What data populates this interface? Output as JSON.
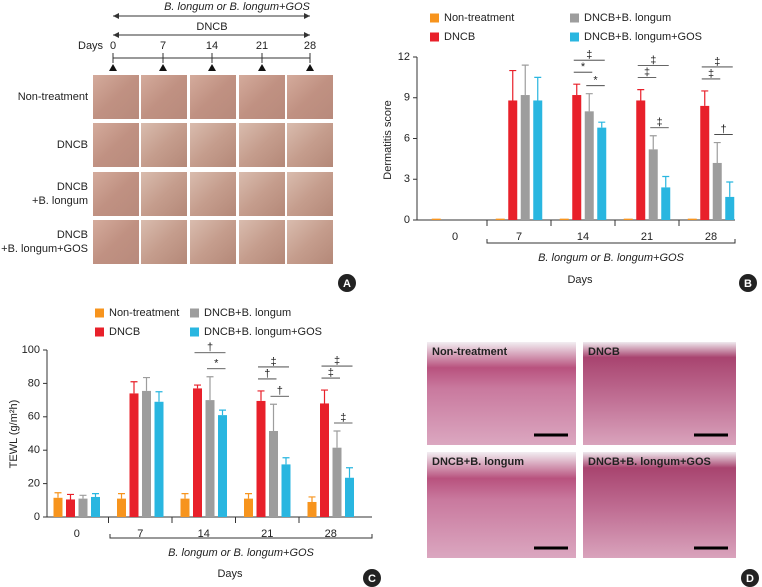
{
  "chart_data": [
    {
      "type": "bar",
      "y_label": "Dermatitis score",
      "x_label": "Days",
      "bracket_label": "B. longum or B. longum+GOS",
      "categories": [
        "0",
        "7",
        "14",
        "21",
        "28"
      ],
      "series": [
        {
          "name": "Non-treatment",
          "color": "#f7941d",
          "values": [
            0.1,
            0.1,
            0.1,
            0.1,
            0.1
          ],
          "errors": [
            null,
            null,
            null,
            null,
            null
          ]
        },
        {
          "name": "DNCB",
          "color": "#e8202a",
          "values": [
            null,
            8.8,
            9.2,
            8.8,
            8.4
          ],
          "errors": [
            null,
            2.2,
            0.8,
            0.8,
            1.1
          ]
        },
        {
          "name": "DNCB+B. longum",
          "color": "#9d9d9d",
          "values": [
            null,
            9.2,
            8.0,
            5.2,
            4.2
          ],
          "errors": [
            null,
            2.2,
            1.3,
            1.0,
            1.5
          ]
        },
        {
          "name": "DNCB+B. longum+GOS",
          "color": "#29b6e0",
          "values": [
            null,
            8.8,
            6.8,
            2.4,
            1.7
          ],
          "errors": [
            null,
            1.7,
            0.4,
            0.8,
            1.1
          ]
        }
      ],
      "ylim": [
        0,
        12
      ],
      "yticks": [
        0,
        3,
        6,
        9,
        12
      ],
      "annotations": [
        "‡",
        "*",
        "*",
        "‡",
        "‡",
        "‡",
        "‡",
        "‡",
        "†"
      ]
    },
    {
      "type": "bar",
      "y_label": "TEWL (g/m²h)",
      "x_label": "Days",
      "bracket_label": "B. longum or B. longum+GOS",
      "categories": [
        "0",
        "7",
        "14",
        "21",
        "28"
      ],
      "series": [
        {
          "name": "Non-treatment",
          "color": "#f7941d",
          "values": [
            11.5,
            11,
            11,
            11,
            9
          ],
          "errors": [
            3,
            3,
            3,
            3,
            3
          ]
        },
        {
          "name": "DNCB",
          "color": "#e8202a",
          "values": [
            10.5,
            74,
            77,
            69.5,
            68
          ],
          "errors": [
            3,
            7,
            2,
            6,
            8
          ]
        },
        {
          "name": "DNCB+B. longum",
          "color": "#9d9d9d",
          "values": [
            11,
            75.5,
            70,
            51.5,
            41.5
          ],
          "errors": [
            2,
            8,
            14,
            16,
            10
          ]
        },
        {
          "name": "DNCB+B. longum+GOS",
          "color": "#29b6e0",
          "values": [
            12,
            69,
            61,
            31.5,
            23.5
          ],
          "errors": [
            2,
            6,
            3,
            4,
            6
          ]
        }
      ],
      "ylim": [
        0,
        100
      ],
      "yticks": [
        0,
        20,
        40,
        60,
        80,
        100
      ],
      "annotations": [
        "†",
        "*",
        "‡",
        "†",
        "†",
        "‡",
        "‡",
        "‡"
      ]
    }
  ],
  "panel_a": {
    "treatment_arrow": "B. longum or B. longum+GOS",
    "dncb_arrow": "DNCB",
    "days_label": "Days",
    "days": [
      "0",
      "7",
      "14",
      "21",
      "28"
    ],
    "rows": [
      [
        "Non-treatment"
      ],
      [
        "DNCB"
      ],
      [
        "DNCB",
        "+B. longum"
      ],
      [
        "DNCB",
        "+B. longum+GOS"
      ]
    ]
  },
  "panel_d": {
    "labels": [
      "Non-treatment",
      "DNCB",
      "DNCB+B. longum",
      "DNCB+B. longum+GOS"
    ]
  },
  "panel_letters": [
    "A",
    "B",
    "C",
    "D"
  ]
}
